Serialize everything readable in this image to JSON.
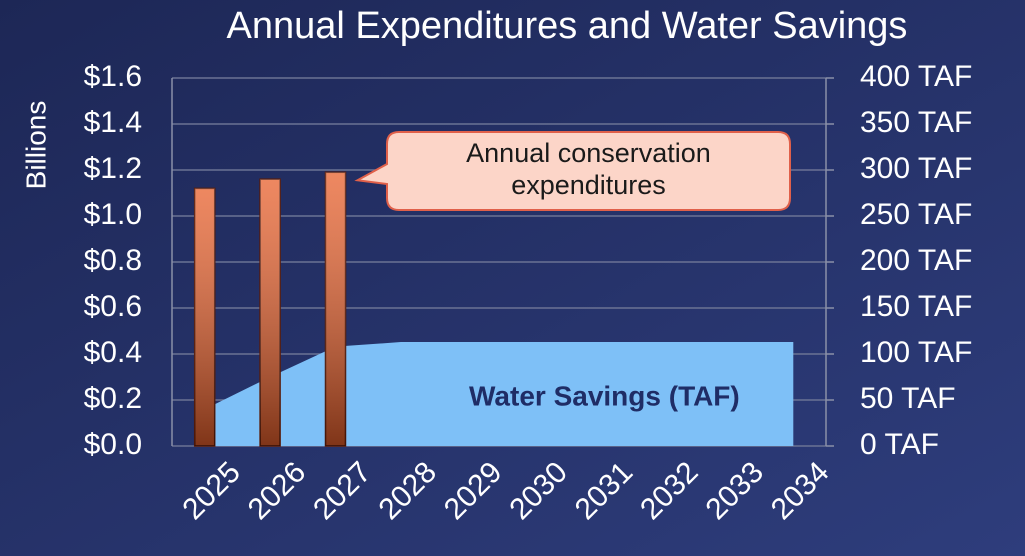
{
  "chart_data": {
    "type": "bar",
    "title": "Annual Expenditures and Water Savings",
    "y_label": "Billions",
    "categories": [
      "2025",
      "2026",
      "2027",
      "2028",
      "2029",
      "2030",
      "2031",
      "2032",
      "2033",
      "2034"
    ],
    "series": [
      {
        "name": "Annual conservation expenditures",
        "type": "bar",
        "color": "#e8602c",
        "values": [
          1.12,
          1.16,
          1.19,
          null,
          null,
          null,
          null,
          null,
          null,
          null
        ]
      },
      {
        "name": "Water Savings (TAF)",
        "type": "area",
        "axis": "y2",
        "color": "#7ec0f7",
        "values": [
          40,
          75,
          108,
          113,
          113,
          113,
          113,
          113,
          113,
          113
        ]
      }
    ],
    "ylim": [
      0,
      1.6
    ],
    "yticks": [
      {
        "value": 0,
        "label": "$0.0"
      },
      {
        "value": 0.2,
        "label": "$0.2"
      },
      {
        "value": 0.4,
        "label": "$0.4"
      },
      {
        "value": 0.6,
        "label": "$0.6"
      },
      {
        "value": 0.8,
        "label": "$0.8"
      },
      {
        "value": 1.0,
        "label": "$1.0"
      },
      {
        "value": 1.2,
        "label": "$1.2"
      },
      {
        "value": 1.4,
        "label": "$1.4"
      },
      {
        "value": 1.6,
        "label": "$1.6"
      }
    ],
    "y2lim": [
      0,
      400
    ],
    "y2ticks": [
      {
        "value": 0,
        "label": "0 TAF"
      },
      {
        "value": 50,
        "label": "50 TAF"
      },
      {
        "value": 100,
        "label": "100 TAF"
      },
      {
        "value": 150,
        "label": "150 TAF"
      },
      {
        "value": 200,
        "label": "200 TAF"
      },
      {
        "value": 250,
        "label": "250 TAF"
      },
      {
        "value": 300,
        "label": "300 TAF"
      },
      {
        "value": 350,
        "label": "350 TAF"
      },
      {
        "value": 400,
        "label": "400 TAF"
      }
    ],
    "grid": true
  }
}
